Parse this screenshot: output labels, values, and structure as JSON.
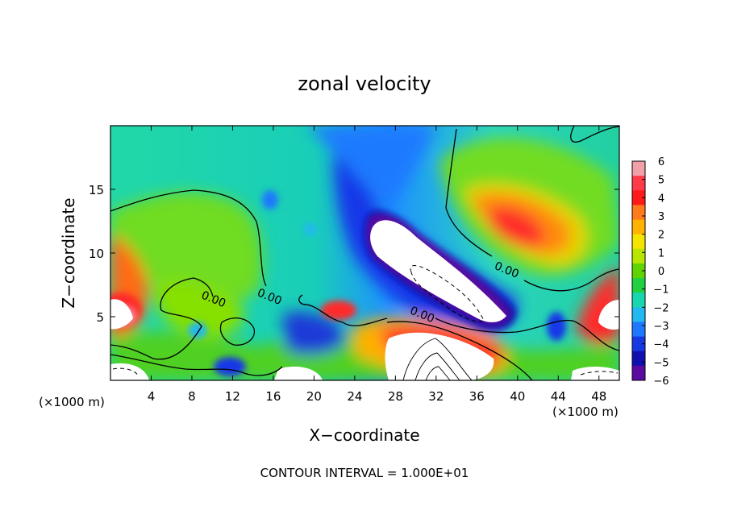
{
  "chart_data": {
    "type": "heatmap",
    "title": "zonal velocity",
    "xlabel": "X−coordinate",
    "ylabel": "Z−coordinate",
    "x_unit_left": "(×1000 m)",
    "x_unit_right": "(×1000 m)",
    "xlim": [
      0,
      50
    ],
    "ylim": [
      0,
      20
    ],
    "x_ticks": [
      4,
      8,
      12,
      16,
      20,
      24,
      28,
      32,
      36,
      40,
      44,
      48
    ],
    "y_ticks": [
      5,
      10,
      15
    ],
    "footer": "CONTOUR INTERVAL = 1.000E+01",
    "contour_labels": [
      {
        "text": "0.00",
        "x": 10.0,
        "z": 6.1
      },
      {
        "text": "0.00",
        "x": 15.5,
        "z": 6.3
      },
      {
        "text": "0.00",
        "x": 30.5,
        "z": 4.9
      },
      {
        "text": "0.00",
        "x": 38.8,
        "z": 8.4
      }
    ],
    "colorbar": {
      "ticks": [
        "6",
        "5",
        "4",
        "3",
        "2",
        "1",
        "0",
        "−1",
        "−2",
        "−3",
        "−4",
        "−5",
        "−6"
      ],
      "colors": [
        "#f2a0a8",
        "#ff3b4a",
        "#ff1a1a",
        "#ff7a1a",
        "#ffb300",
        "#f4e400",
        "#b8e600",
        "#5fd400",
        "#21d040",
        "#19d6b0",
        "#22b8f0",
        "#1e78ff",
        "#1738e0",
        "#1010b0",
        "#5a0aa0"
      ]
    },
    "features": [
      {
        "region": "upper-left",
        "x": [
          0,
          14
        ],
        "z": [
          9,
          15
        ],
        "value_approx": 1
      },
      {
        "region": "center jet core",
        "x": [
          26,
          36
        ],
        "z": [
          5,
          13
        ],
        "value_approx": -7
      },
      {
        "region": "right maximum",
        "x": [
          36,
          44
        ],
        "z": [
          9,
          14
        ],
        "value_approx": 5
      },
      {
        "region": "left surface maximum",
        "x": [
          0,
          2
        ],
        "z": [
          4,
          7
        ],
        "value_approx": 6
      },
      {
        "region": "near-surface maximum",
        "x": [
          28,
          34
        ],
        "z": [
          0,
          4
        ],
        "value_approx": 7
      }
    ]
  }
}
